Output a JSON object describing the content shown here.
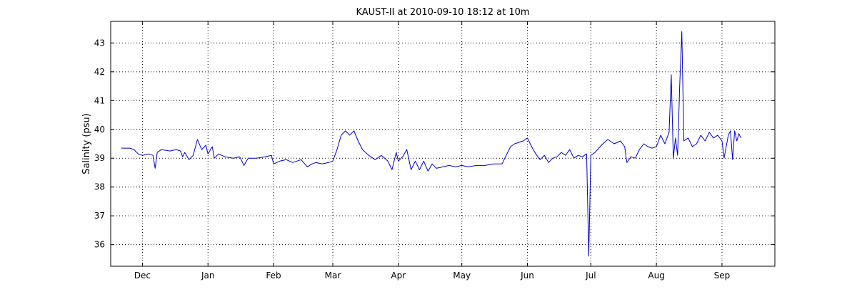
{
  "chart_data": {
    "type": "line",
    "title": "KAUST-II at 2010-09-10 18:12 at 10m",
    "xlabel": "",
    "ylabel": "Salinity (psu)",
    "xlim": [
      "2009-11-16",
      "2010-09-26"
    ],
    "ylim": [
      35.25,
      43.75
    ],
    "xticks": [
      {
        "date": "2009-12-01",
        "label": "Dec"
      },
      {
        "date": "2010-01-01",
        "label": "Jan"
      },
      {
        "date": "2010-02-01",
        "label": "Feb"
      },
      {
        "date": "2010-03-01",
        "label": "Mar"
      },
      {
        "date": "2010-04-01",
        "label": "Apr"
      },
      {
        "date": "2010-05-01",
        "label": "May"
      },
      {
        "date": "2010-06-01",
        "label": "Jun"
      },
      {
        "date": "2010-07-01",
        "label": "Jul"
      },
      {
        "date": "2010-08-01",
        "label": "Aug"
      },
      {
        "date": "2010-09-01",
        "label": "Sep"
      }
    ],
    "yticks": [
      36,
      37,
      38,
      39,
      40,
      41,
      42,
      43
    ],
    "grid": true,
    "color": "#0000cc",
    "series": [
      {
        "points": [
          [
            "2009-11-21",
            39.35
          ],
          [
            "2009-11-25",
            39.35
          ],
          [
            "2009-11-27",
            39.3
          ],
          [
            "2009-11-29",
            39.15
          ],
          [
            "2009-12-01",
            39.1
          ],
          [
            "2009-12-04",
            39.15
          ],
          [
            "2009-12-06",
            39.1
          ],
          [
            "2009-12-07",
            38.65
          ],
          [
            "2009-12-08",
            39.2
          ],
          [
            "2009-12-10",
            39.3
          ],
          [
            "2009-12-14",
            39.25
          ],
          [
            "2009-12-17",
            39.3
          ],
          [
            "2009-12-19",
            39.25
          ],
          [
            "2009-12-20",
            39.05
          ],
          [
            "2009-12-21",
            39.2
          ],
          [
            "2009-12-23",
            38.95
          ],
          [
            "2009-12-25",
            39.1
          ],
          [
            "2009-12-27",
            39.65
          ],
          [
            "2009-12-29",
            39.3
          ],
          [
            "2009-12-31",
            39.45
          ],
          [
            "2010-01-01",
            39.15
          ],
          [
            "2010-01-03",
            39.4
          ],
          [
            "2010-01-04",
            39.0
          ],
          [
            "2010-01-06",
            39.15
          ],
          [
            "2010-01-09",
            39.05
          ],
          [
            "2010-01-13",
            39.0
          ],
          [
            "2010-01-16",
            39.05
          ],
          [
            "2010-01-18",
            38.75
          ],
          [
            "2010-01-20",
            39.0
          ],
          [
            "2010-01-24",
            39.0
          ],
          [
            "2010-01-28",
            39.05
          ],
          [
            "2010-01-31",
            39.1
          ],
          [
            "2010-02-01",
            38.8
          ],
          [
            "2010-02-04",
            38.9
          ],
          [
            "2010-02-07",
            38.95
          ],
          [
            "2010-02-10",
            38.85
          ],
          [
            "2010-02-14",
            38.95
          ],
          [
            "2010-02-17",
            38.7
          ],
          [
            "2010-02-19",
            38.8
          ],
          [
            "2010-02-21",
            38.85
          ],
          [
            "2010-02-24",
            38.8
          ],
          [
            "2010-02-27",
            38.85
          ],
          [
            "2010-03-01",
            38.9
          ],
          [
            "2010-03-03",
            39.3
          ],
          [
            "2010-03-05",
            39.8
          ],
          [
            "2010-03-07",
            39.95
          ],
          [
            "2010-03-09",
            39.8
          ],
          [
            "2010-03-11",
            39.95
          ],
          [
            "2010-03-13",
            39.6
          ],
          [
            "2010-03-15",
            39.3
          ],
          [
            "2010-03-18",
            39.1
          ],
          [
            "2010-03-21",
            38.95
          ],
          [
            "2010-03-24",
            39.1
          ],
          [
            "2010-03-27",
            38.9
          ],
          [
            "2010-03-29",
            38.6
          ],
          [
            "2010-03-31",
            39.2
          ],
          [
            "2010-04-01",
            38.9
          ],
          [
            "2010-04-03",
            39.05
          ],
          [
            "2010-04-05",
            39.3
          ],
          [
            "2010-04-07",
            38.6
          ],
          [
            "2010-04-09",
            38.9
          ],
          [
            "2010-04-11",
            38.6
          ],
          [
            "2010-04-13",
            38.9
          ],
          [
            "2010-04-15",
            38.55
          ],
          [
            "2010-04-17",
            38.8
          ],
          [
            "2010-04-19",
            38.65
          ],
          [
            "2010-04-22",
            38.7
          ],
          [
            "2010-04-25",
            38.75
          ],
          [
            "2010-04-28",
            38.7
          ],
          [
            "2010-05-01",
            38.75
          ],
          [
            "2010-05-04",
            38.7
          ],
          [
            "2010-05-08",
            38.75
          ],
          [
            "2010-05-12",
            38.75
          ],
          [
            "2010-05-16",
            38.8
          ],
          [
            "2010-05-20",
            38.8
          ],
          [
            "2010-05-22",
            39.1
          ],
          [
            "2010-05-24",
            39.4
          ],
          [
            "2010-05-26",
            39.5
          ],
          [
            "2010-05-28",
            39.55
          ],
          [
            "2010-05-30",
            39.6
          ],
          [
            "2010-06-01",
            39.7
          ],
          [
            "2010-06-03",
            39.4
          ],
          [
            "2010-06-05",
            39.15
          ],
          [
            "2010-06-07",
            38.95
          ],
          [
            "2010-06-09",
            39.1
          ],
          [
            "2010-06-11",
            38.85
          ],
          [
            "2010-06-13",
            39.0
          ],
          [
            "2010-06-15",
            39.05
          ],
          [
            "2010-06-17",
            39.2
          ],
          [
            "2010-06-19",
            39.1
          ],
          [
            "2010-06-21",
            39.3
          ],
          [
            "2010-06-23",
            39.0
          ],
          [
            "2010-06-25",
            39.1
          ],
          [
            "2010-06-27",
            39.05
          ],
          [
            "2010-06-29",
            39.15
          ],
          [
            "2010-06-30",
            35.6
          ],
          [
            "2010-07-01",
            39.1
          ],
          [
            "2010-07-03",
            39.2
          ],
          [
            "2010-07-06",
            39.45
          ],
          [
            "2010-07-09",
            39.65
          ],
          [
            "2010-07-12",
            39.5
          ],
          [
            "2010-07-15",
            39.6
          ],
          [
            "2010-07-17",
            39.4
          ],
          [
            "2010-07-18",
            38.85
          ],
          [
            "2010-07-20",
            39.05
          ],
          [
            "2010-07-22",
            39.0
          ],
          [
            "2010-07-24",
            39.3
          ],
          [
            "2010-07-26",
            39.5
          ],
          [
            "2010-07-28",
            39.4
          ],
          [
            "2010-07-30",
            39.35
          ],
          [
            "2010-08-01",
            39.4
          ],
          [
            "2010-08-03",
            39.8
          ],
          [
            "2010-08-05",
            39.5
          ],
          [
            "2010-08-07",
            39.9
          ],
          [
            "2010-08-08",
            41.9
          ],
          [
            "2010-08-09",
            39.0
          ],
          [
            "2010-08-10",
            39.7
          ],
          [
            "2010-08-11",
            39.1
          ],
          [
            "2010-08-12",
            41.5
          ],
          [
            "2010-08-13",
            43.4
          ],
          [
            "2010-08-14",
            39.6
          ],
          [
            "2010-08-16",
            39.7
          ],
          [
            "2010-08-18",
            39.4
          ],
          [
            "2010-08-20",
            39.5
          ],
          [
            "2010-08-22",
            39.8
          ],
          [
            "2010-08-24",
            39.6
          ],
          [
            "2010-08-26",
            39.9
          ],
          [
            "2010-08-28",
            39.7
          ],
          [
            "2010-08-30",
            39.8
          ],
          [
            "2010-09-01",
            39.6
          ],
          [
            "2010-09-02",
            39.0
          ],
          [
            "2010-09-04",
            39.8
          ],
          [
            "2010-09-05",
            39.95
          ],
          [
            "2010-09-06",
            38.95
          ],
          [
            "2010-09-07",
            39.95
          ],
          [
            "2010-09-08",
            39.6
          ],
          [
            "2010-09-09",
            39.85
          ],
          [
            "2010-09-10",
            39.7
          ]
        ]
      }
    ]
  }
}
